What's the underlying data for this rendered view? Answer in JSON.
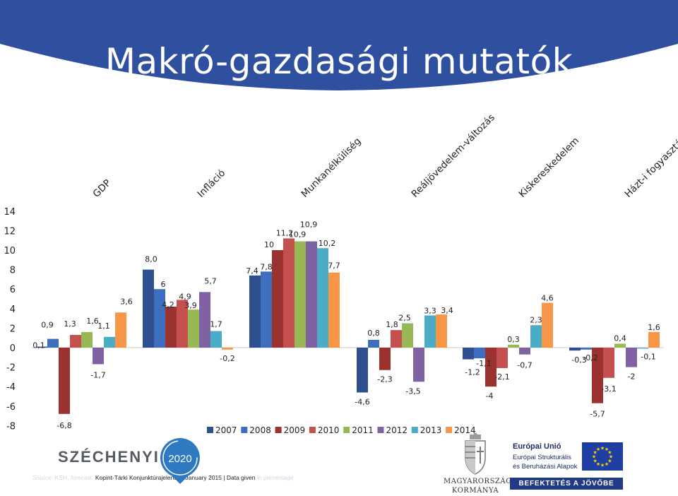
{
  "slide": {
    "title": "Makró-gazdasági mutatók",
    "colors": {
      "banner": "#2f4f9f",
      "title_text": "#ffffff"
    }
  },
  "footer": {
    "source_prefix": "Source: KSH, forecast:",
    "source_main": "Kopint-Tárki Konjunktúrajelentés, January 2015 | Data given",
    "source_suffix": "in percentage",
    "szechenyi_word": "SZÉCHENYI",
    "szechenyi_year": "2020",
    "kormany_line1": "MAGYARORSZÁG",
    "kormany_line2": "KORMÁNYA",
    "eu_line1": "Európai Unió",
    "eu_line2": "Európai Strukturális",
    "eu_line3": "és Beruházási Alapok",
    "eu_bar": "BEFEKTETÉS A JÖVŐBE"
  },
  "chart_data": {
    "type": "bar",
    "categories": [
      "GDP",
      "Infláció",
      "Munkanélküliség",
      "Reáljövedelem-változás",
      "Kiskereskedelem",
      "Házt-i fogyasztás"
    ],
    "series": [
      {
        "name": "2007",
        "color": "#2f4f8f",
        "values": [
          0.1,
          8.0,
          7.4,
          -4.6,
          -1.2,
          -0.3
        ]
      },
      {
        "name": "2008",
        "color": "#3d6fbe",
        "values": [
          0.9,
          6,
          7.8,
          0.8,
          -1.1,
          -0.2
        ]
      },
      {
        "name": "2009",
        "color": "#9b3230",
        "values": [
          -6.8,
          4.2,
          10,
          -2.3,
          -4,
          -5.7
        ]
      },
      {
        "name": "2010",
        "color": "#c45150",
        "values": [
          1.3,
          4.9,
          11.2,
          1.8,
          -2.1,
          -3.1
        ]
      },
      {
        "name": "2011",
        "color": "#98b856",
        "values": [
          1.6,
          3.9,
          10.9,
          2.5,
          0.3,
          0.4
        ]
      },
      {
        "name": "2012",
        "color": "#7f62a2",
        "values": [
          -1.7,
          5.7,
          10.9,
          -3.5,
          -0.7,
          -2
        ]
      },
      {
        "name": "2013",
        "color": "#4bacc6",
        "values": [
          1.1,
          1.7,
          10.2,
          3.3,
          2.3,
          -0.1
        ]
      },
      {
        "name": "2014",
        "color": "#f79646",
        "values": [
          3.6,
          -0.2,
          7.7,
          3.4,
          4.6,
          1.6
        ]
      }
    ],
    "labels": [
      [
        "0,1",
        "0,9",
        "-6,8",
        "1,3",
        "1,6",
        "-1,7",
        "1,1",
        "3,6"
      ],
      [
        "8,0",
        "6",
        "4,2",
        "4,9",
        "3,9",
        "5,7",
        "1,7",
        "-0,2"
      ],
      [
        "7,4",
        "7,8",
        "10",
        "11,2",
        "10,9",
        "10,9",
        "10,2",
        "7,7"
      ],
      [
        "-4,6",
        "0,8",
        "-2,3",
        "1,8",
        "2,5",
        "-3,5",
        "3,3",
        "3,4"
      ],
      [
        "-1,2",
        "-1,1",
        "-4",
        "-2,1",
        "0,3",
        "-0,7",
        "2,3",
        "4,6"
      ],
      [
        "-0,3",
        "-0,2",
        "-5,7",
        "-3,1",
        "0,4",
        "-2",
        "-0,1",
        "1,6"
      ]
    ],
    "y_ticks": [
      "14",
      "12",
      "10",
      "8",
      "6",
      "4",
      "2",
      "0",
      "-2",
      "-4",
      "-6",
      "-8"
    ],
    "ylim": [
      -8,
      14
    ],
    "grid": false,
    "legend_position": "bottom-center"
  }
}
